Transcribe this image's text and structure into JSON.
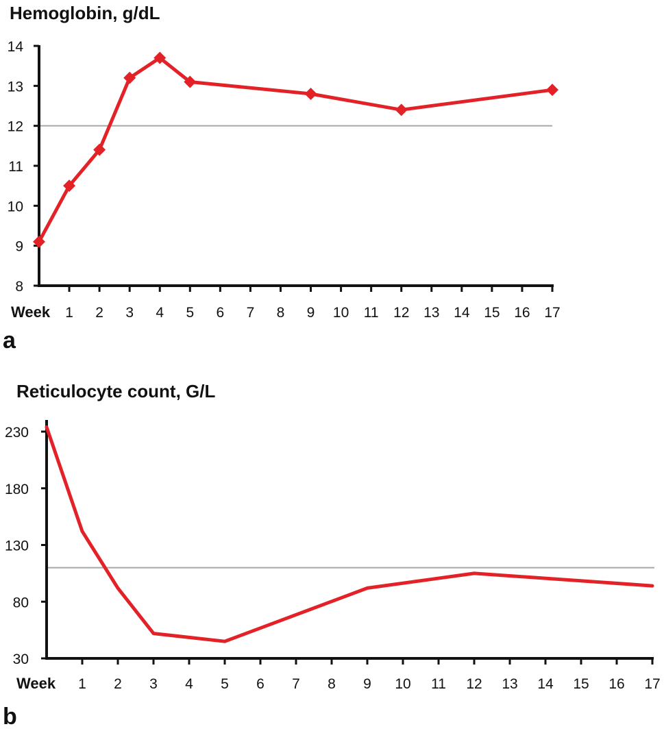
{
  "chart_data": [
    {
      "type": "line",
      "panel_label": "a",
      "title": "Hemoglobin, g/dL",
      "xlabel": "Week",
      "ylabel": "",
      "x_ticks": [
        "1",
        "2",
        "3",
        "4",
        "5",
        "6",
        "7",
        "8",
        "9",
        "10",
        "11",
        "12",
        "13",
        "14",
        "15",
        "16",
        "17"
      ],
      "y_ticks": [
        8,
        9,
        10,
        11,
        12,
        13,
        14
      ],
      "ylim": [
        8,
        14
      ],
      "reference_line": 12,
      "markers": true,
      "series": [
        {
          "x": [
            0,
            1,
            2,
            3,
            4,
            5,
            9,
            12,
            17
          ],
          "y": [
            9.1,
            10.5,
            11.4,
            13.2,
            13.7,
            13.1,
            12.8,
            12.4,
            12.9
          ]
        }
      ]
    },
    {
      "type": "line",
      "panel_label": "b",
      "title": "Reticulocyte count, G/L",
      "xlabel": "Week",
      "ylabel": "",
      "x_ticks": [
        "1",
        "2",
        "3",
        "4",
        "5",
        "6",
        "7",
        "8",
        "9",
        "10",
        "11",
        "12",
        "13",
        "14",
        "15",
        "16",
        "17"
      ],
      "y_ticks": [
        30,
        80,
        130,
        180,
        230
      ],
      "ylim": [
        30,
        235
      ],
      "reference_line": 110,
      "markers": false,
      "series": [
        {
          "x": [
            0,
            1,
            2,
            3,
            5,
            9,
            12,
            17
          ],
          "y": [
            234,
            142,
            92,
            52,
            45,
            92,
            105,
            94
          ]
        }
      ]
    }
  ],
  "colors": {
    "line": "#e32227",
    "reference": "#a6a6a6",
    "axis": "#111111"
  }
}
